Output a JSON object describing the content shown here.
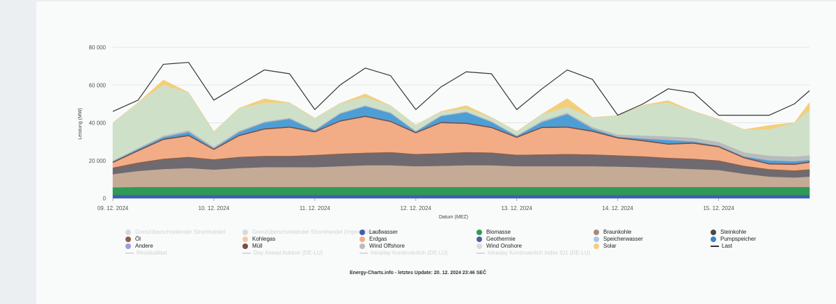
{
  "chart_data": {
    "type": "area",
    "ylabel": "Leistung (MW)",
    "xlabel": "Datum (MEZ)",
    "ylim": [
      0,
      80000
    ],
    "yticks": [
      "0",
      "20 000",
      "40 000",
      "60 000",
      "80 000"
    ],
    "xlim": [
      0,
      6.9
    ],
    "xticks": [
      {
        "x": 0,
        "label": "09. 12. 2024"
      },
      {
        "x": 1,
        "label": "10. 12. 2024"
      },
      {
        "x": 2,
        "label": "11. 12. 2024"
      },
      {
        "x": 3,
        "label": "12. 12. 2024"
      },
      {
        "x": 4,
        "label": "13. 12. 2024"
      },
      {
        "x": 5,
        "label": "14. 12. 2024"
      },
      {
        "x": 6,
        "label": "15. 12. 2024"
      }
    ],
    "x": [
      0,
      0.25,
      0.5,
      0.75,
      1,
      1.25,
      1.5,
      1.75,
      2,
      2.25,
      2.5,
      2.75,
      3,
      3.25,
      3.5,
      3.75,
      4,
      4.25,
      4.5,
      4.75,
      5,
      5.25,
      5.5,
      5.75,
      6,
      6.25,
      6.5,
      6.75,
      6.9
    ],
    "series": [
      {
        "name": "Laufwasser",
        "color": "#3f5fb0",
        "values": [
          1800,
          1800,
          1800,
          1800,
          1800,
          1800,
          1800,
          1800,
          1800,
          1800,
          1800,
          1800,
          1800,
          1800,
          1800,
          1800,
          1800,
          1800,
          1800,
          1800,
          1800,
          1800,
          1800,
          1800,
          1800,
          1800,
          1800,
          1800,
          1800
        ]
      },
      {
        "name": "Biomasse",
        "color": "#2e9a55",
        "values": [
          4000,
          4200,
          4200,
          4200,
          4200,
          4200,
          4200,
          4200,
          4200,
          4200,
          4200,
          4200,
          4200,
          4200,
          4200,
          4200,
          4200,
          4200,
          4200,
          4200,
          4200,
          4200,
          4200,
          4200,
          4200,
          4200,
          4200,
          4200,
          4200
        ]
      },
      {
        "name": "Braunkohle",
        "color": "#c5aa96",
        "values": [
          7000,
          8500,
          9500,
          10000,
          9200,
          10000,
          10500,
          10500,
          10500,
          11000,
          11500,
          11500,
          11000,
          11200,
          11500,
          11500,
          11000,
          11000,
          11000,
          11000,
          10800,
          10500,
          10000,
          9500,
          9000,
          7000,
          5500,
          5000,
          5500
        ]
      },
      {
        "name": "Steinkohle",
        "color": "#6e6a70",
        "values": [
          3000,
          4000,
          5000,
          5500,
          5000,
          5500,
          5500,
          5500,
          6000,
          6200,
          6200,
          6500,
          6000,
          6200,
          6500,
          6300,
          5600,
          5800,
          6000,
          5800,
          5500,
          5300,
          5000,
          5000,
          4600,
          3800,
          3500,
          3300,
          3400
        ]
      },
      {
        "name": "Öl",
        "color": "#8b5e4d",
        "values": [
          500,
          500,
          500,
          500,
          500,
          500,
          500,
          500,
          500,
          500,
          500,
          500,
          500,
          500,
          500,
          500,
          500,
          500,
          500,
          500,
          500,
          500,
          500,
          500,
          500,
          500,
          500,
          500,
          500
        ]
      },
      {
        "name": "Erdgas",
        "color": "#f2ad86",
        "values": [
          2500,
          6000,
          10000,
          11000,
          5000,
          11000,
          14000,
          15000,
          12000,
          17000,
          19000,
          16000,
          11000,
          16000,
          15000,
          13000,
          9000,
          14000,
          14000,
          12000,
          9000,
          8000,
          7000,
          8000,
          7000,
          4000,
          2500,
          3000,
          3500
        ]
      },
      {
        "name": "Müll",
        "color": "#7a4e44",
        "values": [
          600,
          600,
          600,
          600,
          600,
          600,
          600,
          600,
          600,
          600,
          600,
          600,
          600,
          600,
          600,
          600,
          600,
          600,
          600,
          600,
          600,
          600,
          600,
          600,
          600,
          600,
          600,
          600,
          600
        ]
      },
      {
        "name": "Pumpspeicher",
        "color": "#4e9ed6",
        "values": [
          200,
          500,
          800,
          1500,
          200,
          1500,
          3000,
          4000,
          300,
          3500,
          5000,
          4000,
          200,
          3000,
          5500,
          2500,
          200,
          2500,
          6500,
          1000,
          200,
          800,
          1800,
          500,
          200,
          300,
          1500,
          1200,
          800
        ]
      },
      {
        "name": "Wind Offshore",
        "color": "#b8bcbd",
        "values": [
          400,
          600,
          800,
          1000,
          800,
          700,
          600,
          600,
          500,
          500,
          500,
          500,
          500,
          500,
          500,
          500,
          500,
          700,
          800,
          900,
          1200,
          1600,
          1900,
          2000,
          2000,
          2200,
          2500,
          2500,
          2500
        ]
      },
      {
        "name": "Wind Onshore",
        "color": "#cfe0c9",
        "values": [
          20000,
          24000,
          27000,
          20000,
          8000,
          12000,
          10000,
          8000,
          6000,
          5000,
          4500,
          3500,
          3000,
          2000,
          1500,
          2000,
          2000,
          3500,
          3000,
          5000,
          10000,
          16000,
          18000,
          14000,
          12000,
          12000,
          14000,
          18000,
          24000
        ]
      },
      {
        "name": "Solar",
        "color": "#f4cf7a",
        "values": [
          0,
          0,
          2500,
          0,
          0,
          0,
          2000,
          0,
          0,
          0,
          1500,
          0,
          0,
          0,
          1500,
          0,
          0,
          0,
          4500,
          0,
          0,
          0,
          1000,
          0,
          0,
          0,
          2000,
          0,
          4000
        ]
      }
    ],
    "line": {
      "name": "Last",
      "color": "#333333",
      "values": [
        46000,
        52000,
        71000,
        72000,
        52000,
        60000,
        68000,
        66000,
        47000,
        60000,
        69000,
        65000,
        47000,
        59000,
        67000,
        66000,
        47000,
        58000,
        68000,
        63000,
        44000,
        50000,
        58000,
        56000,
        44000,
        44000,
        44000,
        50000,
        57000
      ]
    },
    "legend": [
      {
        "label": "Grenzüberschreitender Stromhandel",
        "color": "#d6dadb",
        "shape": "dot",
        "faded": true
      },
      {
        "label": "Grenzüberschreitender Stromhandel (Import/Export)",
        "color": "#d6dadb",
        "shape": "dot",
        "faded": true
      },
      {
        "label": "Laufwasser",
        "color": "#3f5fb0",
        "shape": "dot"
      },
      {
        "label": "Biomasse",
        "color": "#2e9a55",
        "shape": "dot"
      },
      {
        "label": "Braunkohle",
        "color": "#a98878",
        "shape": "dot"
      },
      {
        "label": "Steinkohle",
        "color": "#4a474c",
        "shape": "dot"
      },
      {
        "label": "Öl",
        "color": "#8b5e4d",
        "shape": "dot"
      },
      {
        "label": "Kohlegas",
        "color": "#f6c8a0",
        "shape": "dot"
      },
      {
        "label": "Erdgas",
        "color": "#f2ad86",
        "shape": "dot"
      },
      {
        "label": "Geothermie",
        "color": "#4862a3",
        "shape": "dot"
      },
      {
        "label": "Speicherwasser",
        "color": "#a9c6e8",
        "shape": "dot"
      },
      {
        "label": "Pumpspeicher",
        "color": "#3d86c6",
        "shape": "dot"
      },
      {
        "label": "Andere",
        "color": "#9e9ed6",
        "shape": "dot"
      },
      {
        "label": "Müll",
        "color": "#7a4e44",
        "shape": "dot"
      },
      {
        "label": "Wind Offshore",
        "color": "#b8bcbd",
        "shape": "dot"
      },
      {
        "label": "Wind Onshore",
        "color": "#d9dcdc",
        "shape": "dot"
      },
      {
        "label": "Solar",
        "color": "#f4cf7a",
        "shape": "dot"
      },
      {
        "label": "Last",
        "color": "#333333",
        "shape": "line"
      },
      {
        "label": "Residuallast",
        "color": "#d6dadb",
        "shape": "line",
        "faded": true
      },
      {
        "label": "Day Ahead Auktion (DE-LU)",
        "color": "#d6dadb",
        "shape": "line",
        "faded": true
      },
      {
        "label": "Intraday Kontinuierlich (DE-LU)",
        "color": "#d6dadb",
        "shape": "line",
        "faded": true
      },
      {
        "label": "Intraday Kontinuierlich Index ID1 (DE-LU)",
        "color": "#d6dadb",
        "shape": "line",
        "faded": true
      }
    ]
  },
  "footer": "Energy-Charts.info - letztes Update: 20. 12. 2024 23:46 SEČ"
}
